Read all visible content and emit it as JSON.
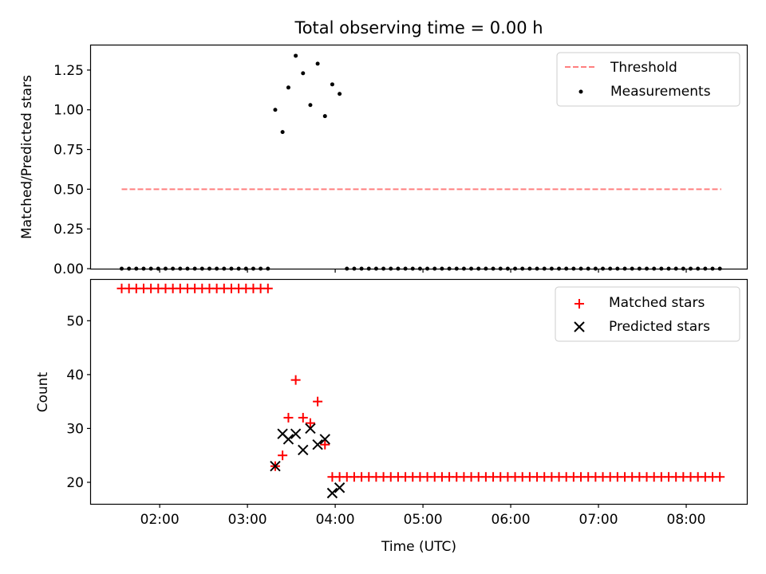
{
  "chart_data": [
    {
      "type": "scatter",
      "title": "Total observing time = 0.00 h",
      "ylabel": "Matched/Predicted stars",
      "xlabel": "",
      "ylim": [
        0,
        1.41
      ],
      "xlim": [
        "01:13",
        "08:42"
      ],
      "x_ticks": [
        "02:00",
        "03:00",
        "04:00",
        "05:00",
        "06:00",
        "07:00",
        "08:00"
      ],
      "y_ticks": [
        "0.00",
        "0.25",
        "0.50",
        "0.75",
        "1.00",
        "1.25"
      ],
      "grid": false,
      "legend_position": "top-right",
      "threshold": {
        "name": "Threshold",
        "style": "dashed",
        "color": "#ff7f7f",
        "value": 0.5,
        "x_range": [
          "01:34",
          "08:24"
        ]
      },
      "series": [
        {
          "name": "Measurements",
          "color": "#000000",
          "marker": "dot",
          "points": [
            {
              "x": "01:34",
              "y": 0
            },
            {
              "x": "01:39",
              "y": 0
            },
            {
              "x": "01:44",
              "y": 0
            },
            {
              "x": "01:49",
              "y": 0
            },
            {
              "x": "01:54",
              "y": 0
            },
            {
              "x": "01:59",
              "y": 0
            },
            {
              "x": "02:04",
              "y": 0
            },
            {
              "x": "02:09",
              "y": 0
            },
            {
              "x": "02:14",
              "y": 0
            },
            {
              "x": "02:19",
              "y": 0
            },
            {
              "x": "02:24",
              "y": 0
            },
            {
              "x": "02:29",
              "y": 0
            },
            {
              "x": "02:34",
              "y": 0
            },
            {
              "x": "02:39",
              "y": 0
            },
            {
              "x": "02:44",
              "y": 0
            },
            {
              "x": "02:49",
              "y": 0
            },
            {
              "x": "02:54",
              "y": 0
            },
            {
              "x": "02:59",
              "y": 0
            },
            {
              "x": "03:04",
              "y": 0
            },
            {
              "x": "03:09",
              "y": 0
            },
            {
              "x": "03:14",
              "y": 0
            },
            {
              "x": "03:19",
              "y": 1.0
            },
            {
              "x": "03:24",
              "y": 0.86
            },
            {
              "x": "03:28",
              "y": 1.14
            },
            {
              "x": "03:33",
              "y": 1.34
            },
            {
              "x": "03:38",
              "y": 1.23
            },
            {
              "x": "03:43",
              "y": 1.03
            },
            {
              "x": "03:48",
              "y": 1.29
            },
            {
              "x": "03:53",
              "y": 0.96
            },
            {
              "x": "03:58",
              "y": 1.16
            },
            {
              "x": "04:03",
              "y": 1.1
            },
            {
              "x": "04:08",
              "y": 0
            },
            {
              "x": "04:13",
              "y": 0
            },
            {
              "x": "04:18",
              "y": 0
            },
            {
              "x": "04:23",
              "y": 0
            },
            {
              "x": "04:28",
              "y": 0
            },
            {
              "x": "04:33",
              "y": 0
            },
            {
              "x": "04:38",
              "y": 0
            },
            {
              "x": "04:43",
              "y": 0
            },
            {
              "x": "04:48",
              "y": 0
            },
            {
              "x": "04:53",
              "y": 0
            },
            {
              "x": "04:58",
              "y": 0
            },
            {
              "x": "05:03",
              "y": 0
            },
            {
              "x": "05:08",
              "y": 0
            },
            {
              "x": "05:13",
              "y": 0
            },
            {
              "x": "05:18",
              "y": 0
            },
            {
              "x": "05:23",
              "y": 0
            },
            {
              "x": "05:28",
              "y": 0
            },
            {
              "x": "05:33",
              "y": 0
            },
            {
              "x": "05:38",
              "y": 0
            },
            {
              "x": "05:43",
              "y": 0
            },
            {
              "x": "05:48",
              "y": 0
            },
            {
              "x": "05:53",
              "y": 0
            },
            {
              "x": "05:58",
              "y": 0
            },
            {
              "x": "06:03",
              "y": 0
            },
            {
              "x": "06:08",
              "y": 0
            },
            {
              "x": "06:13",
              "y": 0
            },
            {
              "x": "06:18",
              "y": 0
            },
            {
              "x": "06:23",
              "y": 0
            },
            {
              "x": "06:28",
              "y": 0
            },
            {
              "x": "06:33",
              "y": 0
            },
            {
              "x": "06:38",
              "y": 0
            },
            {
              "x": "06:43",
              "y": 0
            },
            {
              "x": "06:48",
              "y": 0
            },
            {
              "x": "06:53",
              "y": 0
            },
            {
              "x": "06:58",
              "y": 0
            },
            {
              "x": "07:03",
              "y": 0
            },
            {
              "x": "07:08",
              "y": 0
            },
            {
              "x": "07:13",
              "y": 0
            },
            {
              "x": "07:18",
              "y": 0
            },
            {
              "x": "07:23",
              "y": 0
            },
            {
              "x": "07:28",
              "y": 0
            },
            {
              "x": "07:33",
              "y": 0
            },
            {
              "x": "07:38",
              "y": 0
            },
            {
              "x": "07:43",
              "y": 0
            },
            {
              "x": "07:48",
              "y": 0
            },
            {
              "x": "07:53",
              "y": 0
            },
            {
              "x": "07:58",
              "y": 0
            },
            {
              "x": "08:03",
              "y": 0
            },
            {
              "x": "08:08",
              "y": 0
            },
            {
              "x": "08:13",
              "y": 0
            },
            {
              "x": "08:18",
              "y": 0
            },
            {
              "x": "08:23",
              "y": 0
            }
          ]
        }
      ]
    },
    {
      "type": "scatter",
      "title": "",
      "ylabel": "Count",
      "xlabel": "Time (UTC)",
      "ylim": [
        16,
        57.6
      ],
      "xlim": [
        "01:13",
        "08:42"
      ],
      "x_ticks": [
        "02:00",
        "03:00",
        "04:00",
        "05:00",
        "06:00",
        "07:00",
        "08:00"
      ],
      "y_ticks": [
        "20",
        "30",
        "40",
        "50"
      ],
      "grid": false,
      "legend_position": "top-right",
      "series": [
        {
          "name": "Matched stars",
          "color": "#ff0000",
          "marker": "plus",
          "points": [
            {
              "x": "01:34",
              "y": 56
            },
            {
              "x": "01:39",
              "y": 56
            },
            {
              "x": "01:44",
              "y": 56
            },
            {
              "x": "01:49",
              "y": 56
            },
            {
              "x": "01:54",
              "y": 56
            },
            {
              "x": "01:59",
              "y": 56
            },
            {
              "x": "02:04",
              "y": 56
            },
            {
              "x": "02:09",
              "y": 56
            },
            {
              "x": "02:14",
              "y": 56
            },
            {
              "x": "02:19",
              "y": 56
            },
            {
              "x": "02:24",
              "y": 56
            },
            {
              "x": "02:29",
              "y": 56
            },
            {
              "x": "02:34",
              "y": 56
            },
            {
              "x": "02:39",
              "y": 56
            },
            {
              "x": "02:44",
              "y": 56
            },
            {
              "x": "02:49",
              "y": 56
            },
            {
              "x": "02:54",
              "y": 56
            },
            {
              "x": "02:59",
              "y": 56
            },
            {
              "x": "03:04",
              "y": 56
            },
            {
              "x": "03:09",
              "y": 56
            },
            {
              "x": "03:14",
              "y": 56
            },
            {
              "x": "03:19",
              "y": 23
            },
            {
              "x": "03:24",
              "y": 25
            },
            {
              "x": "03:28",
              "y": 32
            },
            {
              "x": "03:33",
              "y": 39
            },
            {
              "x": "03:38",
              "y": 32
            },
            {
              "x": "03:43",
              "y": 31
            },
            {
              "x": "03:48",
              "y": 35
            },
            {
              "x": "03:53",
              "y": 27
            },
            {
              "x": "03:58",
              "y": 21
            },
            {
              "x": "04:03",
              "y": 21
            },
            {
              "x": "04:08",
              "y": 21
            },
            {
              "x": "04:13",
              "y": 21
            },
            {
              "x": "04:18",
              "y": 21
            },
            {
              "x": "04:23",
              "y": 21
            },
            {
              "x": "04:28",
              "y": 21
            },
            {
              "x": "04:33",
              "y": 21
            },
            {
              "x": "04:38",
              "y": 21
            },
            {
              "x": "04:43",
              "y": 21
            },
            {
              "x": "04:48",
              "y": 21
            },
            {
              "x": "04:53",
              "y": 21
            },
            {
              "x": "04:58",
              "y": 21
            },
            {
              "x": "05:03",
              "y": 21
            },
            {
              "x": "05:08",
              "y": 21
            },
            {
              "x": "05:13",
              "y": 21
            },
            {
              "x": "05:18",
              "y": 21
            },
            {
              "x": "05:23",
              "y": 21
            },
            {
              "x": "05:28",
              "y": 21
            },
            {
              "x": "05:33",
              "y": 21
            },
            {
              "x": "05:38",
              "y": 21
            },
            {
              "x": "05:43",
              "y": 21
            },
            {
              "x": "05:48",
              "y": 21
            },
            {
              "x": "05:53",
              "y": 21
            },
            {
              "x": "05:58",
              "y": 21
            },
            {
              "x": "06:03",
              "y": 21
            },
            {
              "x": "06:08",
              "y": 21
            },
            {
              "x": "06:13",
              "y": 21
            },
            {
              "x": "06:18",
              "y": 21
            },
            {
              "x": "06:23",
              "y": 21
            },
            {
              "x": "06:28",
              "y": 21
            },
            {
              "x": "06:33",
              "y": 21
            },
            {
              "x": "06:38",
              "y": 21
            },
            {
              "x": "06:43",
              "y": 21
            },
            {
              "x": "06:48",
              "y": 21
            },
            {
              "x": "06:53",
              "y": 21
            },
            {
              "x": "06:58",
              "y": 21
            },
            {
              "x": "07:03",
              "y": 21
            },
            {
              "x": "07:08",
              "y": 21
            },
            {
              "x": "07:13",
              "y": 21
            },
            {
              "x": "07:18",
              "y": 21
            },
            {
              "x": "07:23",
              "y": 21
            },
            {
              "x": "07:28",
              "y": 21
            },
            {
              "x": "07:33",
              "y": 21
            },
            {
              "x": "07:38",
              "y": 21
            },
            {
              "x": "07:43",
              "y": 21
            },
            {
              "x": "07:48",
              "y": 21
            },
            {
              "x": "07:53",
              "y": 21
            },
            {
              "x": "07:58",
              "y": 21
            },
            {
              "x": "08:03",
              "y": 21
            },
            {
              "x": "08:08",
              "y": 21
            },
            {
              "x": "08:13",
              "y": 21
            },
            {
              "x": "08:18",
              "y": 21
            },
            {
              "x": "08:23",
              "y": 21
            }
          ]
        },
        {
          "name": "Predicted stars",
          "color": "#000000",
          "marker": "x",
          "points": [
            {
              "x": "03:19",
              "y": 23
            },
            {
              "x": "03:24",
              "y": 29
            },
            {
              "x": "03:28",
              "y": 28
            },
            {
              "x": "03:33",
              "y": 29
            },
            {
              "x": "03:38",
              "y": 26
            },
            {
              "x": "03:43",
              "y": 30
            },
            {
              "x": "03:48",
              "y": 27
            },
            {
              "x": "03:53",
              "y": 28
            },
            {
              "x": "03:58",
              "y": 18
            },
            {
              "x": "04:03",
              "y": 19
            }
          ]
        }
      ]
    }
  ]
}
